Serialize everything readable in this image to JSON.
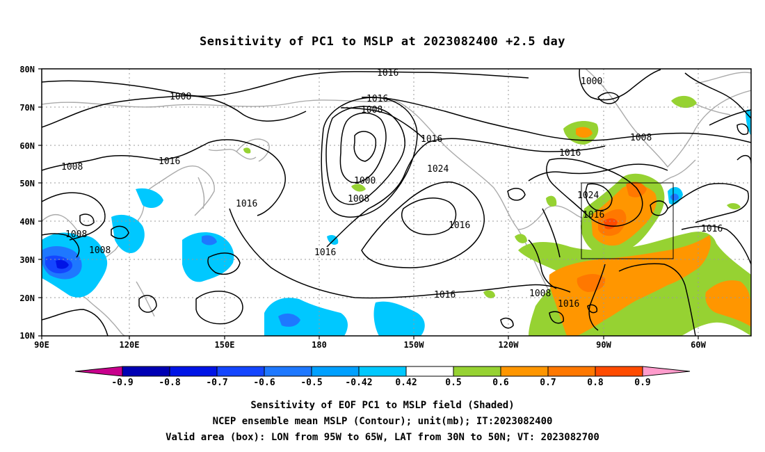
{
  "title": "Sensitivity of PC1 to MSLP at 2023082400 +2.5 day",
  "lat_labels": [
    "80N",
    "70N",
    "60N",
    "50N",
    "40N",
    "30N",
    "20N",
    "10N"
  ],
  "lon_labels": [
    "90E",
    "120E",
    "150E",
    "180",
    "150W",
    "120W",
    "90W",
    "60W"
  ],
  "contour_labels": {
    "l1": "1016",
    "l2": "1008",
    "l3": "1016",
    "l4": "1008",
    "l5": "1016",
    "l6": "1016",
    "l7": "1024",
    "l8": "1000",
    "l9": "1008",
    "l10": "1016",
    "l11": "1016",
    "l12": "1016",
    "l13": "1016",
    "l14": "1000",
    "l15": "1008",
    "l16": "1016",
    "l17": "1024",
    "l18": "1016",
    "l19": "1016",
    "l20": "1008",
    "l21": "1016",
    "l22": "1008",
    "l23": "1008",
    "l24": "1008",
    "l25": "1016"
  },
  "colorbar": {
    "ticks": [
      "-0.9",
      "-0.8",
      "-0.7",
      "-0.6",
      "-0.5",
      "-0.42",
      "0.42",
      "0.5",
      "0.6",
      "0.7",
      "0.8",
      "0.9"
    ],
    "colors": {
      "lt_neg_end": "#c8008c",
      "c1": "#0000b4",
      "c2": "#0014e6",
      "c3": "#1446ff",
      "c4": "#1e78ff",
      "c5": "#00a0ff",
      "c6": "#00c8ff",
      "white": "#ffffff",
      "c7": "#96d232",
      "c8": "#ff9600",
      "c9": "#ff7800",
      "c10": "#ff4b00",
      "c11": "#ff0000",
      "gt_pos_end": "#ff9ccc"
    }
  },
  "captions": {
    "line1": "Sensitivity of EOF PC1 to MSLP field (Shaded)",
    "line2": "NCEP ensemble mean MSLP (Contour); unit(mb); IT:2023082400",
    "line3": "Valid area (box): LON from 95W to 65W, LAT from 30N to 50N; VT: 2023082700"
  }
}
